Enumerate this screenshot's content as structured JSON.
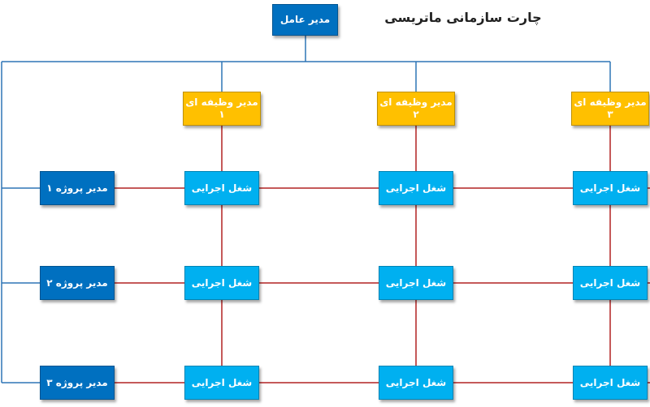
{
  "title": "چارت سازمانی ماتریسی",
  "ceo": "مدیر عامل",
  "functional_managers": [
    {
      "line1": "مدیر وظیفه ای",
      "line2": "۱"
    },
    {
      "line1": "مدیر وظیفه ای",
      "line2": "۲"
    },
    {
      "line1": "مدیر وظیفه ای",
      "line2": "۳"
    }
  ],
  "project_managers": [
    "مدیر پروژه ۱",
    "مدیر پروژه ۲",
    "مدیر پروژه ۳"
  ],
  "work_label": "شغل اجرایی",
  "colors": {
    "ceo": "#0070c0",
    "functional": "#ffc000",
    "work": "#00b0f0",
    "project": "#0070c0",
    "blue_line": "#2e75b6",
    "red_line": "#b22222"
  }
}
